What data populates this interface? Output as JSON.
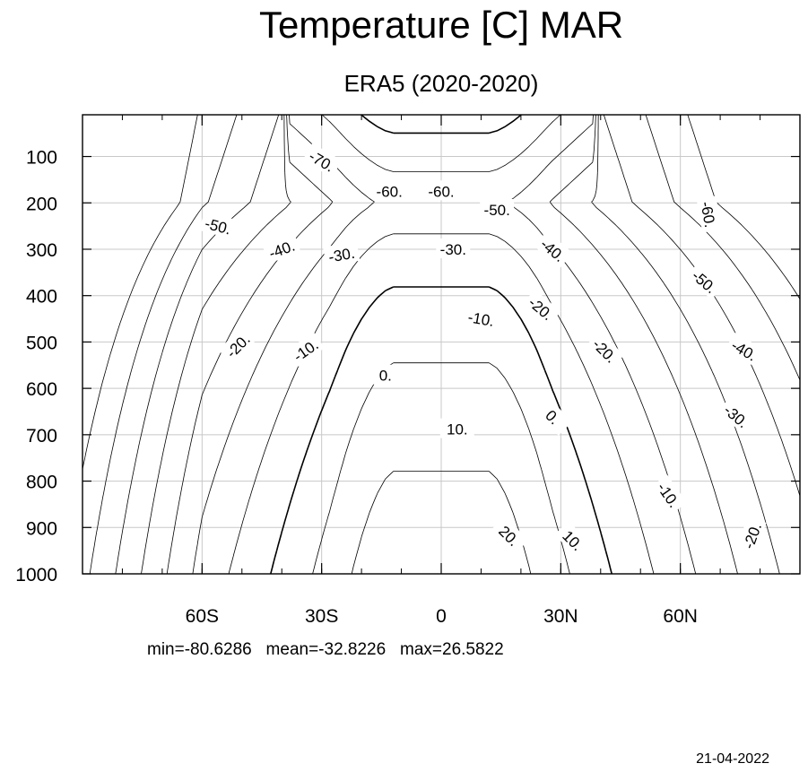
{
  "chart_data": {
    "type": "contour",
    "title": "Temperature [C] MAR",
    "subtitle": "ERA5 (2020-2020)",
    "x_ticks": [
      {
        "value": -60,
        "label": "60S"
      },
      {
        "value": -30,
        "label": "30S"
      },
      {
        "value": 0,
        "label": "0"
      },
      {
        "value": 30,
        "label": "30N"
      },
      {
        "value": 60,
        "label": "60N"
      }
    ],
    "y_ticks": [
      100,
      200,
      300,
      400,
      500,
      600,
      700,
      800,
      900,
      1000
    ],
    "x_range": [
      -90,
      90
    ],
    "y_range": [
      10,
      1000
    ],
    "y_reversed": true,
    "grid": true,
    "units": "C",
    "contour_interval": 10,
    "line_style": {
      "negative": "dashed",
      "zero": "solid-thick",
      "positive": "solid"
    },
    "contour_labels": [
      {
        "text": "-70.",
        "x": -30,
        "y": 110,
        "angle": 30
      },
      {
        "text": "-60.",
        "x": -13,
        "y": 175
      },
      {
        "text": "-60.",
        "x": 0,
        "y": 175
      },
      {
        "text": "-50.",
        "x": 14,
        "y": 215
      },
      {
        "text": "-50.",
        "x": -56,
        "y": 250,
        "angle": 15
      },
      {
        "text": "-40.",
        "x": -40,
        "y": 300,
        "angle": -20
      },
      {
        "text": "-30.",
        "x": -25,
        "y": 312,
        "angle": -10
      },
      {
        "text": "-30.",
        "x": 3,
        "y": 300
      },
      {
        "text": "-40.",
        "x": 28,
        "y": 302,
        "angle": 40
      },
      {
        "text": "-60.",
        "x": 67,
        "y": 225,
        "angle": 80
      },
      {
        "text": "-50.",
        "x": 66,
        "y": 370,
        "angle": 40
      },
      {
        "text": "-20.",
        "x": 25,
        "y": 428,
        "angle": 40
      },
      {
        "text": "-10.",
        "x": 10,
        "y": 450,
        "angle": 10
      },
      {
        "text": "-20.",
        "x": -51,
        "y": 508,
        "angle": -45
      },
      {
        "text": "-10.",
        "x": -34,
        "y": 518,
        "angle": -35
      },
      {
        "text": "0.",
        "x": -14,
        "y": 572
      },
      {
        "text": "-40.",
        "x": 76,
        "y": 518,
        "angle": 30
      },
      {
        "text": "-20.",
        "x": 41,
        "y": 519,
        "angle": 45
      },
      {
        "text": "0.",
        "x": 28,
        "y": 662,
        "angle": 45
      },
      {
        "text": "-30.",
        "x": 74,
        "y": 660,
        "angle": 40
      },
      {
        "text": "10.",
        "x": 4,
        "y": 688
      },
      {
        "text": "-10.",
        "x": 57,
        "y": 830,
        "angle": 55
      },
      {
        "text": "20.",
        "x": 17,
        "y": 918,
        "angle": 45
      },
      {
        "text": "10.",
        "x": 33,
        "y": 928,
        "angle": 45
      },
      {
        "text": "-20.",
        "x": 78,
        "y": 918,
        "angle": -70
      }
    ],
    "stats": {
      "min": "-80.6286",
      "mean": "-32.8226",
      "max": "26.5822"
    }
  },
  "footer": {
    "stats_text": "min=-80.6286   mean=-32.8226   max=26.5822",
    "date": "21-04-2022"
  }
}
